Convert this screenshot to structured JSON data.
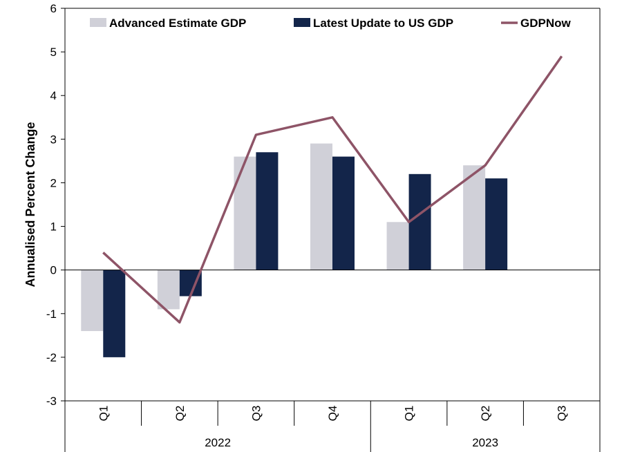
{
  "chart_data": {
    "type": "bar",
    "title": "",
    "xlabel": "",
    "ylabel": "Annualised Percent Change",
    "ylim": [
      -3,
      6
    ],
    "yticks": [
      -3,
      -2,
      -1,
      0,
      1,
      2,
      3,
      4,
      5,
      6
    ],
    "categories": [
      "Q1",
      "Q2",
      "Q3",
      "Q4",
      "Q1",
      "Q2",
      "Q3"
    ],
    "year_groups": [
      {
        "label": "2022",
        "count": 4
      },
      {
        "label": "2023",
        "count": 3
      }
    ],
    "legend_position": "top",
    "grid": false,
    "series": [
      {
        "name": "Advanced Estimate GDP",
        "type": "bar",
        "color": "#d0d0d8",
        "values": [
          -1.4,
          -0.9,
          2.6,
          2.9,
          1.1,
          2.4,
          null
        ]
      },
      {
        "name": "Latest Update to US GDP",
        "type": "bar",
        "color": "#13254a",
        "values": [
          -2.0,
          -0.6,
          2.7,
          2.6,
          2.2,
          2.1,
          null
        ]
      },
      {
        "name": "GDPNow",
        "type": "line",
        "color": "#8e5467",
        "values": [
          0.4,
          -1.2,
          3.1,
          3.5,
          1.1,
          2.4,
          4.9
        ]
      }
    ]
  }
}
